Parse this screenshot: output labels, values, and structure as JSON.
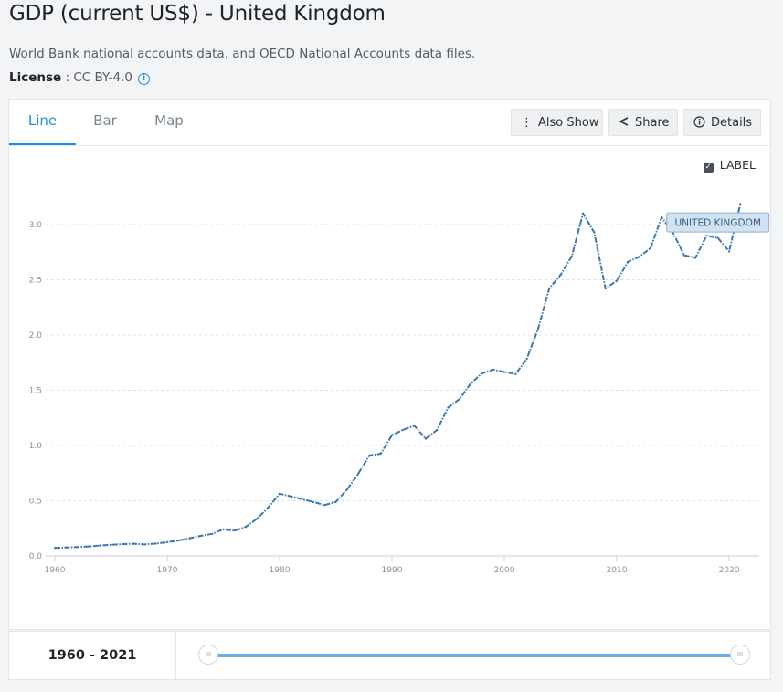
{
  "page": {
    "title": "GDP (current US$) - United Kingdom",
    "source": "World Bank national accounts data, and OECD National Accounts data files.",
    "license_label": "License",
    "license_value": " : CC BY-4.0",
    "info_icon": "info-icon"
  },
  "tabs": [
    {
      "label": "Line",
      "active": true
    },
    {
      "label": "Bar",
      "active": false
    },
    {
      "label": "Map",
      "active": false
    }
  ],
  "toolbar": {
    "also_show": "Also Show",
    "share": "Share",
    "details": "Details"
  },
  "label_toggle": {
    "text": "LABEL",
    "checked": true
  },
  "footer": {
    "range": "1960 - 2021",
    "handle_glyph": "III"
  },
  "colors": {
    "accent": "#1d8ce8",
    "line": "#3a78ad",
    "slider": "#6aaee8"
  },
  "chart_data": {
    "type": "line",
    "title": "GDP (current US$) - United Kingdom",
    "xlabel": "",
    "ylabel": "",
    "xlim": [
      1960,
      2021
    ],
    "ylim": [
      0,
      3.2
    ],
    "yticks": [
      0.0,
      0.5,
      1.0,
      1.5,
      2.0,
      2.5,
      3.0
    ],
    "ytick_labels": [
      "0.0",
      "0.5",
      "1.0",
      "1.5",
      "2.0",
      "2.5",
      "3.0"
    ],
    "xticks": [
      1960,
      1970,
      1980,
      1990,
      2000,
      2010,
      2020
    ],
    "xtick_labels": [
      "1960",
      "1970",
      "1980",
      "1990",
      "2000",
      "2010",
      "2020"
    ],
    "grid": true,
    "series": [
      {
        "name": "UNITED KINGDOM",
        "x": [
          1960,
          1961,
          1962,
          1963,
          1964,
          1965,
          1966,
          1967,
          1968,
          1969,
          1970,
          1971,
          1972,
          1973,
          1974,
          1975,
          1976,
          1977,
          1978,
          1979,
          1980,
          1981,
          1982,
          1983,
          1984,
          1985,
          1986,
          1987,
          1988,
          1989,
          1990,
          1991,
          1992,
          1993,
          1994,
          1995,
          1996,
          1997,
          1998,
          1999,
          2000,
          2001,
          2002,
          2003,
          2004,
          2005,
          2006,
          2007,
          2008,
          2009,
          2010,
          2011,
          2012,
          2013,
          2014,
          2015,
          2016,
          2017,
          2018,
          2019,
          2020,
          2021
        ],
        "values": [
          0.073,
          0.077,
          0.081,
          0.086,
          0.094,
          0.101,
          0.107,
          0.111,
          0.104,
          0.112,
          0.125,
          0.14,
          0.16,
          0.183,
          0.2,
          0.241,
          0.23,
          0.264,
          0.338,
          0.44,
          0.564,
          0.54,
          0.515,
          0.489,
          0.461,
          0.489,
          0.601,
          0.745,
          0.91,
          0.926,
          1.093,
          1.143,
          1.179,
          1.061,
          1.14,
          1.344,
          1.419,
          1.56,
          1.653,
          1.687,
          1.665,
          1.646,
          1.785,
          2.055,
          2.422,
          2.544,
          2.713,
          3.101,
          2.929,
          2.421,
          2.491,
          2.663,
          2.708,
          2.785,
          3.065,
          2.928,
          2.722,
          2.699,
          2.9,
          2.879,
          2.756,
          3.187
        ]
      }
    ],
    "annotations": [
      {
        "text": "UNITED KINGDOM",
        "x": 2019,
        "y": 3.02
      }
    ]
  }
}
